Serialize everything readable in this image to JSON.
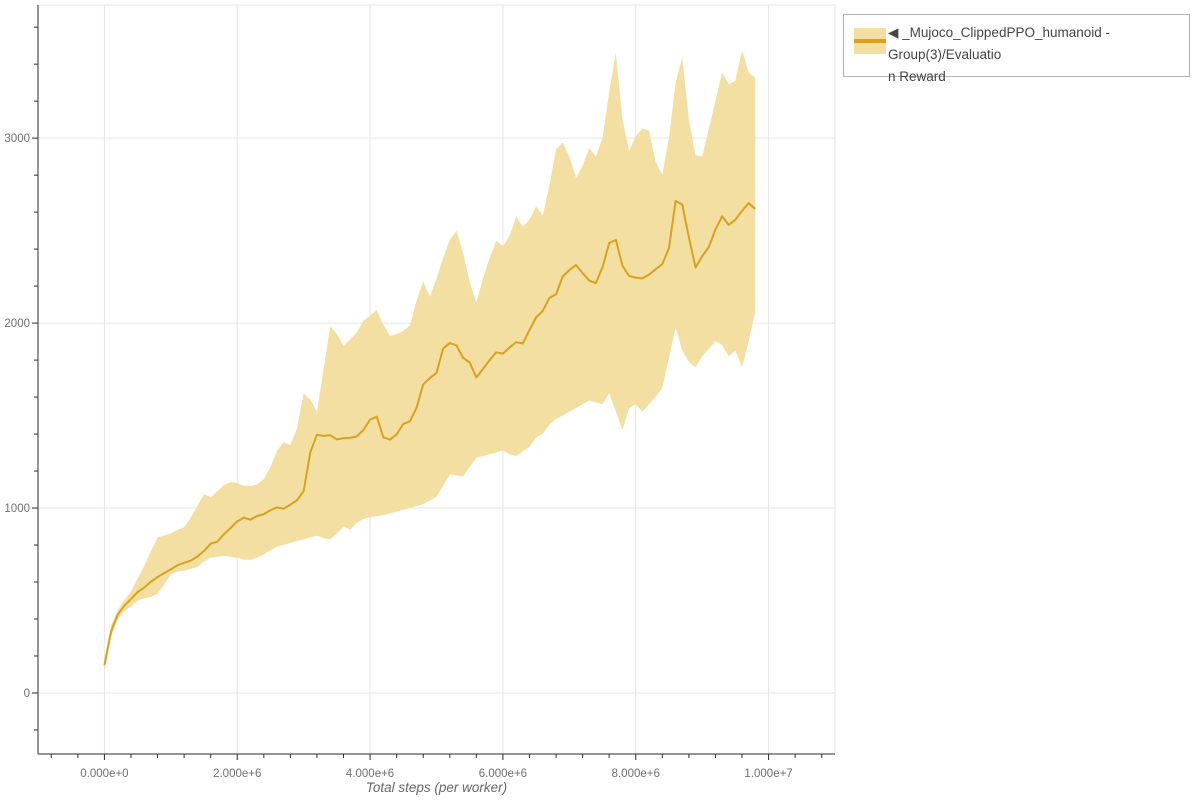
{
  "page": {
    "background": "#ffffff"
  },
  "legend": {
    "position": "top-right",
    "items": [
      {
        "label": "◀ _Mujoco_ClippedPPO_humanoid - Group(3)/Evaluation Reward",
        "label_lines": [
          "◀ _Mujoco_ClippedPPO_humanoid - Group(3)/Evaluatio",
          "n Reward"
        ],
        "swatch_band_color": "#f3dfa1",
        "swatch_line_color": "#d9a21c"
      }
    ]
  },
  "colors": {
    "grid": "#e6e6e6",
    "frame_outline": "#e6e6e6",
    "axis_line": "#2b2b2b",
    "tick": "#2b2b2b",
    "tick_label": "#6f6f6f",
    "axis_title": "#666666",
    "band": "#f3dfa1",
    "line": "#d9a21c",
    "legend_border": "#b3b3b3",
    "legend_text": "#444444"
  },
  "chart_data": {
    "type": "line",
    "title": "",
    "xlabel": "Total steps (per worker)",
    "ylabel": "",
    "grid": true,
    "legend_position": "top-right-outside",
    "xlim": [
      -1000000,
      11000000
    ],
    "ylim": [
      -330,
      3720
    ],
    "xticks": {
      "values": [
        0,
        2000000,
        4000000,
        6000000,
        8000000,
        10000000
      ],
      "labels": [
        "0.000e+0",
        "2.000e+6",
        "4.000e+6",
        "6.000e+6",
        "8.000e+6",
        "1.000e+7"
      ]
    },
    "x_minor_step": 400000,
    "yticks": {
      "values": [
        0,
        1000,
        2000,
        3000
      ],
      "labels": [
        "0",
        "1000",
        "2000",
        "3000"
      ]
    },
    "y_minor_step": 200,
    "series": [
      {
        "name": "_Mujoco_ClippedPPO_humanoid - Group(3)/Evaluation Reward",
        "color": "#d9a21c",
        "band_color": "#f3dfa1",
        "x_unit": "steps",
        "x_start": 0,
        "x_step": 100000,
        "count": 99,
        "mean": [
          150,
          332,
          424,
          472,
          508,
          546,
          570,
          602,
          627,
          648,
          668,
          691,
          704,
          716,
          738,
          768,
          807,
          818,
          858,
          892,
          928,
          948,
          937,
          957,
          967,
          988,
          1004,
          996,
          1018,
          1042,
          1092,
          1302,
          1396,
          1390,
          1394,
          1371,
          1378,
          1380,
          1387,
          1422,
          1478,
          1494,
          1382,
          1370,
          1398,
          1455,
          1469,
          1542,
          1669,
          1702,
          1731,
          1862,
          1892,
          1880,
          1812,
          1787,
          1706,
          1752,
          1800,
          1842,
          1835,
          1868,
          1897,
          1890,
          1962,
          2031,
          2066,
          2136,
          2156,
          2252,
          2287,
          2314,
          2270,
          2230,
          2216,
          2302,
          2432,
          2450,
          2310,
          2255,
          2246,
          2242,
          2262,
          2291,
          2319,
          2406,
          2661,
          2641,
          2464,
          2301,
          2361,
          2411,
          2506,
          2577,
          2531,
          2559,
          2607,
          2649,
          2617
        ],
        "lower": [
          122,
          302,
          398,
          442,
          468,
          501,
          512,
          519,
          536,
          586,
          641,
          656,
          661,
          671,
          681,
          711,
          731,
          736,
          741,
          736,
          731,
          721,
          719,
          731,
          751,
          771,
          791,
          801,
          811,
          821,
          831,
          841,
          851,
          836,
          831,
          861,
          901,
          881,
          921,
          941,
          951,
          956,
          961,
          971,
          981,
          991,
          1001,
          1011,
          1021,
          1041,
          1061,
          1121,
          1181,
          1176,
          1171,
          1221,
          1271,
          1281,
          1291,
          1301,
          1311,
          1291,
          1281,
          1306,
          1331,
          1381,
          1401,
          1451,
          1481,
          1501,
          1521,
          1541,
          1561,
          1581,
          1571,
          1561,
          1621,
          1521,
          1421,
          1541,
          1561,
          1521,
          1561,
          1601,
          1651,
          1811,
          1976,
          1851,
          1791,
          1761,
          1821,
          1861,
          1901,
          1881,
          1821,
          1851,
          1761,
          1901,
          2061
        ],
        "upper": [
          185,
          365,
          448,
          502,
          548,
          618,
          688,
          768,
          841,
          852,
          861,
          882,
          896,
          948,
          1011,
          1076,
          1058,
          1091,
          1124,
          1141,
          1135,
          1121,
          1119,
          1128,
          1156,
          1221,
          1311,
          1356,
          1341,
          1431,
          1621,
          1586,
          1521,
          1751,
          1981,
          1941,
          1878,
          1911,
          1951,
          2011,
          2041,
          2071,
          1991,
          1931,
          1941,
          1958,
          1986,
          2121,
          2226,
          2141,
          2241,
          2351,
          2451,
          2501,
          2381,
          2221,
          2111,
          2241,
          2351,
          2446,
          2416,
          2471,
          2576,
          2521,
          2561,
          2631,
          2581,
          2746,
          2941,
          2976,
          2901,
          2786,
          2851,
          2946,
          2901,
          3001,
          3251,
          3461,
          3101,
          2931,
          3011,
          3051,
          3041,
          2871,
          2801,
          3001,
          3301,
          3436,
          3101,
          2906,
          2901,
          3051,
          3201,
          3356,
          3291,
          3311,
          3476,
          3356,
          3326
        ]
      }
    ]
  }
}
